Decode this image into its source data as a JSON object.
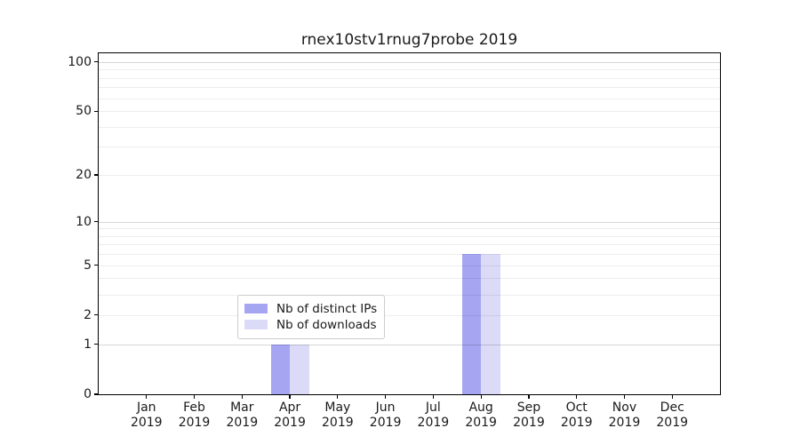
{
  "chart_data": {
    "type": "bar",
    "title": "rnex10stv1rnug7probe 2019",
    "categories": [
      {
        "month": "Jan",
        "year": "2019"
      },
      {
        "month": "Feb",
        "year": "2019"
      },
      {
        "month": "Mar",
        "year": "2019"
      },
      {
        "month": "Apr",
        "year": "2019"
      },
      {
        "month": "May",
        "year": "2019"
      },
      {
        "month": "Jun",
        "year": "2019"
      },
      {
        "month": "Jul",
        "year": "2019"
      },
      {
        "month": "Aug",
        "year": "2019"
      },
      {
        "month": "Sep",
        "year": "2019"
      },
      {
        "month": "Oct",
        "year": "2019"
      },
      {
        "month": "Nov",
        "year": "2019"
      },
      {
        "month": "Dec",
        "year": "2019"
      }
    ],
    "series": [
      {
        "name": "Nb of distinct IPs",
        "color": "#a5a5f2",
        "values": [
          0,
          0,
          0,
          1,
          0,
          0,
          0,
          6,
          0,
          0,
          0,
          0
        ]
      },
      {
        "name": "Nb of downloads",
        "color": "#dbdbf8",
        "values": [
          0,
          0,
          0,
          1,
          0,
          0,
          0,
          6,
          0,
          0,
          0,
          0
        ]
      }
    ],
    "xlabel": "",
    "ylabel": "",
    "yticks": [
      0,
      1,
      2,
      5,
      10,
      20,
      50,
      100
    ],
    "major_gridlines": [
      1,
      10,
      100
    ],
    "minor_gridlines": [
      2,
      3,
      4,
      5,
      6,
      7,
      8,
      9,
      20,
      30,
      40,
      50,
      60,
      70,
      80,
      90
    ],
    "scale": "log10(1+y)",
    "ylim": [
      0,
      113
    ],
    "grid": true,
    "legend_position": "lower-center",
    "plot_background": "#ffffff",
    "spine_color": "#000000"
  }
}
